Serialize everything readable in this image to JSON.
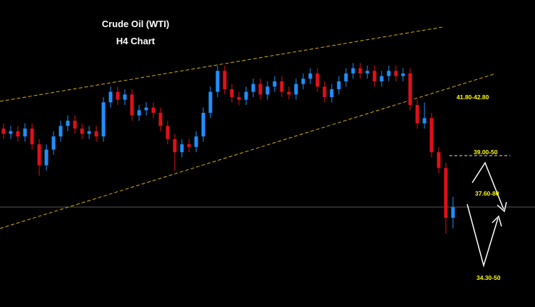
{
  "chart_data": {
    "type": "candlestick",
    "title": "Crude Oil (WTI)",
    "subtitle": "H4 Chart",
    "up_color": "#1e90ff",
    "down_color": "#e0101a",
    "annotation_color": "#ffff00",
    "ylim": [
      33.4,
      45.1
    ],
    "annotations": [
      "41.80-42.80",
      "39.00-50",
      "37.60-80",
      "34.30-50"
    ],
    "open": [
      40.2,
      40.0,
      40.1,
      39.9,
      40.2,
      39.6,
      38.8,
      39.4,
      39.9,
      40.3,
      40.5,
      40.2,
      40.0,
      40.1,
      39.9,
      41.2,
      41.6,
      41.3,
      41.5,
      40.7,
      40.9,
      41.0,
      40.8,
      40.3,
      39.8,
      39.3,
      39.6,
      39.5,
      39.9,
      40.8,
      41.6,
      42.4,
      41.7,
      41.4,
      41.3,
      41.6,
      41.9,
      41.5,
      41.8,
      42.0,
      41.6,
      41.5,
      41.9,
      42.1,
      42.3,
      41.8,
      41.4,
      41.7,
      42.0,
      42.3,
      42.5,
      42.3,
      42.4,
      42.0,
      42.2,
      42.4,
      42.2,
      42.3,
      41.1,
      40.4,
      40.6,
      39.3,
      38.7,
      36.8
    ],
    "high": [
      40.4,
      40.3,
      40.3,
      40.4,
      40.4,
      39.8,
      39.6,
      40.1,
      40.5,
      40.7,
      40.7,
      40.4,
      40.3,
      40.3,
      41.4,
      41.8,
      41.8,
      41.7,
      41.7,
      41.1,
      41.2,
      41.2,
      41.0,
      40.5,
      40.0,
      39.8,
      39.8,
      40.1,
      41.0,
      41.8,
      42.6,
      42.6,
      41.9,
      41.6,
      41.8,
      42.1,
      42.1,
      42.0,
      42.2,
      42.2,
      41.8,
      42.1,
      42.3,
      42.5,
      42.5,
      42.0,
      41.9,
      42.2,
      42.5,
      42.7,
      42.7,
      42.6,
      42.6,
      42.4,
      42.6,
      42.6,
      42.5,
      42.5,
      41.3,
      41.2,
      40.8,
      39.5,
      38.9,
      37.6
    ],
    "low": [
      39.8,
      39.8,
      39.7,
      39.7,
      39.4,
      38.4,
      38.6,
      39.2,
      39.7,
      40.1,
      40.0,
      39.8,
      39.8,
      39.7,
      39.7,
      41.0,
      41.1,
      41.1,
      40.5,
      40.5,
      40.7,
      40.6,
      40.1,
      39.6,
      38.6,
      39.1,
      39.3,
      39.3,
      39.7,
      40.6,
      41.4,
      41.5,
      41.2,
      41.1,
      41.1,
      41.4,
      41.3,
      41.3,
      41.6,
      41.4,
      41.3,
      41.3,
      41.7,
      41.9,
      41.6,
      41.2,
      41.2,
      41.5,
      41.8,
      42.1,
      42.1,
      42.1,
      41.8,
      41.8,
      42.0,
      42.0,
      42.0,
      40.9,
      40.2,
      40.2,
      39.1,
      38.5,
      36.2,
      36.4
    ],
    "close": [
      40.0,
      40.1,
      39.9,
      40.2,
      39.6,
      38.8,
      39.4,
      39.9,
      40.3,
      40.5,
      40.2,
      40.0,
      40.1,
      39.9,
      41.2,
      41.6,
      41.3,
      41.5,
      40.7,
      40.9,
      41.0,
      40.8,
      40.3,
      39.8,
      39.3,
      39.6,
      39.5,
      39.9,
      40.8,
      41.6,
      42.4,
      41.7,
      41.4,
      41.3,
      41.6,
      41.9,
      41.5,
      41.8,
      42.0,
      41.6,
      41.5,
      41.9,
      42.1,
      42.3,
      41.8,
      41.4,
      41.7,
      42.0,
      42.3,
      42.5,
      42.3,
      42.4,
      42.0,
      42.2,
      42.4,
      42.2,
      42.3,
      41.1,
      40.4,
      40.6,
      39.3,
      38.7,
      36.8,
      37.2
    ]
  }
}
